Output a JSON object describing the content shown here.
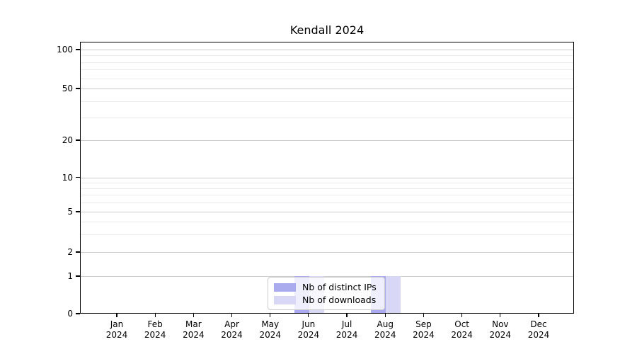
{
  "chart_data": {
    "type": "bar",
    "title": "Kendall 2024",
    "categories": [
      "Jan",
      "Feb",
      "Mar",
      "Apr",
      "May",
      "Jun",
      "Jul",
      "Aug",
      "Sep",
      "Oct",
      "Nov",
      "Dec"
    ],
    "year_label": "2024",
    "series": [
      {
        "name": "Nb of distinct IPs",
        "color": "#aaaaee",
        "values": [
          0,
          0,
          0,
          0,
          0,
          1,
          0,
          1,
          0,
          0,
          0,
          0
        ]
      },
      {
        "name": "Nb of downloads",
        "color": "#d8d8f6",
        "values": [
          0,
          0,
          0,
          0,
          0,
          1,
          0,
          1,
          0,
          0,
          0,
          0
        ]
      }
    ],
    "xlabel": "",
    "ylabel": "",
    "y_scale": "symlog",
    "ylim": [
      0,
      130
    ],
    "y_ticks_major": [
      0,
      1,
      2,
      5,
      10,
      20,
      50,
      100
    ],
    "y_ticks_minor": [
      3,
      4,
      6,
      7,
      8,
      9,
      30,
      40,
      60,
      70,
      80,
      90
    ],
    "grid": "horizontal-major-and-minor",
    "legend_position": "lower-center-inside"
  },
  "colors": {
    "major_grid": "#cccccc",
    "minor_grid": "#ececec",
    "axis": "#000000",
    "legend_border": "#cccccc",
    "legend_background": "rgba(255,255,255,0.8)"
  }
}
